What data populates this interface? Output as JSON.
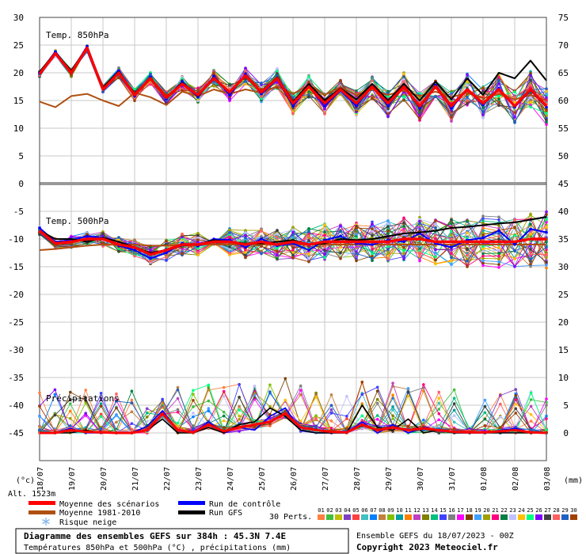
{
  "chart_data": {
    "type": "line",
    "panels": [
      {
        "title": "Temp. 850hPa"
      },
      {
        "title": "Temp. 500hPa"
      },
      {
        "title": "Précipitations"
      }
    ],
    "y_left_ticks": [
      "30",
      "25",
      "20",
      "15",
      "10",
      "5",
      "0",
      "-5",
      "-10",
      "-15",
      "-20",
      "-25",
      "-30",
      "-35",
      "-40",
      "-45"
    ],
    "y_left_unit": "(°c)",
    "y_right_ticks": [
      "75",
      "70",
      "65",
      "60",
      "55",
      "50",
      "45",
      "40",
      "35",
      "30",
      "25",
      "20",
      "15",
      "10",
      "5",
      "0"
    ],
    "y_right_unit": "(mm)",
    "x_ticks": [
      "18/07",
      "19/07",
      "20/07",
      "21/07",
      "22/07",
      "23/07",
      "24/07",
      "25/07",
      "26/07",
      "27/07",
      "28/07",
      "29/07",
      "30/07",
      "31/07",
      "01/08",
      "02/08",
      "03/08"
    ],
    "altitude": "Alt. 1523m",
    "legend": [
      {
        "label": "Moyenne des scénarios",
        "color": "#ff0000"
      },
      {
        "label": "Moyenne 1981-2010",
        "color": "#b05010"
      },
      {
        "label": "Risque neige",
        "color": "#8ab8e8"
      },
      {
        "label": "Run de contrôle",
        "color": "#0000ff"
      },
      {
        "label": "Run GFS",
        "color": "#000000"
      }
    ],
    "perts_label": "30 Perts.",
    "perts": [
      "01",
      "02",
      "03",
      "04",
      "05",
      "06",
      "07",
      "08",
      "09",
      "10",
      "11",
      "12",
      "13",
      "14",
      "15",
      "16",
      "17",
      "18",
      "19",
      "20",
      "21",
      "22",
      "23",
      "24",
      "25",
      "26",
      "27",
      "28",
      "29",
      "30"
    ],
    "pert_colors": [
      "#ff8040",
      "#40c040",
      "#c0c000",
      "#8040c0",
      "#ff4040",
      "#40c0c0",
      "#0080ff",
      "#c08040",
      "#80c000",
      "#00a0a0",
      "#ff8000",
      "#c040c0",
      "#808000",
      "#00c080",
      "#4040ff",
      "#808080",
      "#ff00ff",
      "#804000",
      "#40a0ff",
      "#a0a000",
      "#ff0080",
      "#008040",
      "#c0c0ff",
      "#ffc000",
      "#00ff80",
      "#8000ff",
      "#404040",
      "#ff6060",
      "#2060c0",
      "#a04000"
    ],
    "series": [
      {
        "name": "Moyenne des scénarios",
        "t850": [
          19.8,
          23.5,
          20.0,
          24.5,
          17.0,
          20.0,
          16.0,
          19.0,
          15.5,
          18.0,
          16.0,
          19.0,
          16.5,
          19.5,
          16.5,
          19.0,
          14.5,
          17.5,
          14.5,
          17.0,
          14.5,
          17.5,
          14.5,
          17.5,
          14.0,
          17.5,
          14.0,
          17.0,
          14.5,
          17.0,
          14.0,
          17.0,
          14.0
        ],
        "t500": [
          -8.5,
          -10.8,
          -10.5,
          -10.0,
          -10.0,
          -11.0,
          -11.5,
          -12.8,
          -12.0,
          -11.0,
          -11.0,
          -10.5,
          -10.5,
          -11.0,
          -10.5,
          -11.0,
          -10.5,
          -11.0,
          -10.5,
          -10.5,
          -10.5,
          -10.5,
          -10.5,
          -10.0,
          -10.0,
          -10.5,
          -10.5,
          -10.5,
          -10.5,
          -10.5,
          -10.5,
          -10.0,
          -10.0
        ],
        "precip": [
          0,
          0,
          0.5,
          0.2,
          0.1,
          0,
          0,
          0.5,
          3.5,
          0.5,
          0.1,
          1.5,
          0.3,
          1.0,
          1.5,
          2.0,
          3.5,
          1.0,
          0.5,
          0.2,
          0.1,
          1.5,
          0.5,
          1.0,
          0.5,
          0.8,
          0.5,
          0.2,
          0.1,
          0.1,
          0.3,
          0.5,
          0.1,
          0
        ]
      },
      {
        "name": "Moyenne 1981-2010",
        "t850": [
          14.8,
          13.8,
          15.8,
          16.2,
          15.0,
          14.0,
          16.4,
          15.6,
          14.2,
          16.6,
          15.8,
          17.0,
          16.2,
          17.0,
          16.4,
          17.6,
          16.2,
          17.8,
          16.0,
          17.4,
          16.0,
          17.0,
          16.0,
          16.8,
          15.8,
          16.6,
          15.6,
          16.4,
          15.4,
          16.2,
          15.2,
          16.0,
          15.0
        ],
        "t500": [
          -12.0,
          -11.8,
          -11.5,
          -11.2,
          -11.0,
          -11.0,
          -11.0,
          -11.2,
          -11.2,
          -11.0,
          -11.0,
          -11.0,
          -11.0,
          -11.0,
          -11.0,
          -11.0,
          -11.0,
          -11.0,
          -11.0,
          -11.0,
          -11.0,
          -11.0,
          -11.0,
          -11.0,
          -11.0,
          -11.0,
          -11.0,
          -11.0,
          -11.0,
          -11.0,
          -11.0,
          -11.0,
          -11.0
        ]
      },
      {
        "name": "Run de contrôle",
        "t850": [
          20.0,
          23.8,
          20.2,
          24.8,
          17.2,
          20.4,
          15.8,
          19.2,
          15.2,
          18.4,
          15.6,
          19.4,
          16.0,
          19.8,
          16.2,
          18.8,
          14.0,
          17.6,
          14.0,
          16.8,
          14.0,
          17.6,
          14.0,
          17.8,
          13.6,
          17.8,
          13.6,
          17.0,
          14.2,
          17.2,
          13.8,
          16.8,
          13.8
        ],
        "t500": [
          -8.0,
          -10.5,
          -10.2,
          -9.5,
          -9.8,
          -11.2,
          -12.0,
          -13.5,
          -12.5,
          -10.8,
          -11.2,
          -10.0,
          -10.2,
          -11.5,
          -10.0,
          -11.2,
          -10.8,
          -12.0,
          -10.2,
          -9.5,
          -10.8,
          -11.0,
          -10.2,
          -10.5,
          -9.0,
          -10.8,
          -11.5,
          -10.2,
          -9.8,
          -8.5,
          -11.0,
          -8.2,
          -8.8
        ],
        "precip": [
          0,
          0,
          0.8,
          0,
          0,
          0,
          0,
          1.2,
          4.0,
          0.5,
          0,
          2.0,
          0,
          1.0,
          0.5,
          3.0,
          4.5,
          0.5,
          0,
          0,
          0,
          2.0,
          0,
          1.5,
          0,
          1.0,
          0.5,
          0,
          0,
          0,
          0.5,
          0.8,
          0,
          0
        ]
      },
      {
        "name": "Run GFS",
        "t850": [
          20.2,
          23.6,
          20.4,
          24.6,
          17.4,
          20.2,
          16.2,
          19.0,
          15.6,
          18.2,
          15.8,
          19.0,
          16.4,
          19.6,
          16.6,
          19.2,
          14.8,
          18.0,
          15.0,
          17.2,
          15.2,
          18.0,
          15.0,
          18.0,
          15.0,
          18.4,
          15.2,
          19.0,
          16.0,
          20.0,
          19.0,
          22.2,
          18.6
        ],
        "t500": [
          -8.5,
          -10.0,
          -10.0,
          -10.5,
          -9.8,
          -10.5,
          -11.5,
          -12.5,
          -12.0,
          -11.2,
          -11.0,
          -10.2,
          -10.5,
          -10.8,
          -10.8,
          -10.5,
          -10.2,
          -11.0,
          -10.8,
          -10.0,
          -10.2,
          -10.0,
          -9.5,
          -9.0,
          -8.8,
          -8.5,
          -8.0,
          -7.8,
          -7.5,
          -7.2,
          -7.0,
          -6.5,
          -6.0
        ],
        "precip": [
          0,
          0,
          0,
          0.5,
          0,
          0,
          0,
          0.5,
          2.5,
          0,
          0,
          1.0,
          0,
          1.5,
          2.0,
          4.5,
          3.0,
          0.5,
          0,
          0,
          0,
          5.0,
          1.0,
          0.5,
          2.5,
          0,
          0.5,
          0,
          0,
          0,
          0,
          0,
          0,
          0
        ]
      }
    ],
    "notes": []
  },
  "footer": {
    "title": "Diagramme des ensembles GEFS sur 384h : 45.3N 7.4E",
    "subtitle": "Températures 850hPa et 500hPa (°C) , précipitations (mm)",
    "run": "Ensemble GEFS du 18/07/2023 - 00Z",
    "copyright": "Copyright 2023 Meteociel.fr"
  }
}
